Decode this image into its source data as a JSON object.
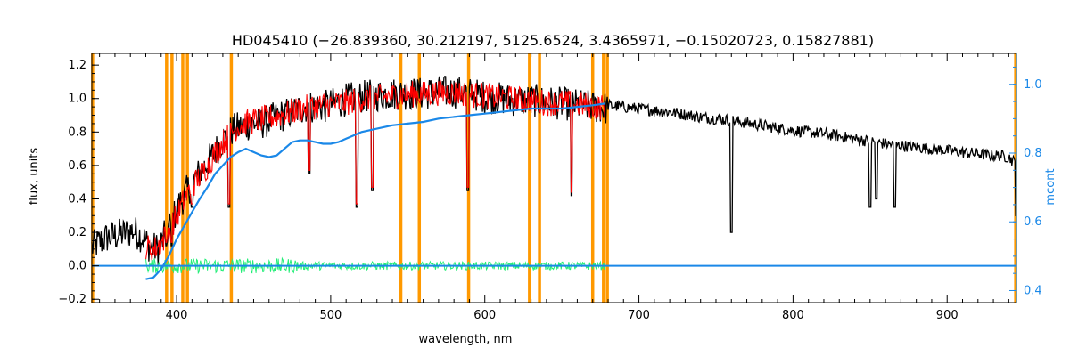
{
  "chart_data": {
    "type": "line",
    "title": "HD045410   (−26.839360, 30.212197, 5125.6524, 3.4365971, −0.15020723, 0.15827881)",
    "xlabel": "wavelength, nm",
    "ylabel": "flux, units",
    "y2label": "mcont",
    "xlim": [
      345,
      945
    ],
    "ylim": [
      -0.22,
      1.27
    ],
    "y2lim": [
      0.365,
      1.09
    ],
    "xticks": [
      400,
      500,
      600,
      700,
      800,
      900
    ],
    "yticks": [
      -0.2,
      0.0,
      0.2,
      0.4,
      0.6,
      0.8,
      1.0,
      1.2
    ],
    "ytick_labels": [
      "−0.2",
      "0.0",
      "0.2",
      "0.4",
      "0.6",
      "0.8",
      "1.0",
      "1.2"
    ],
    "y2ticks": [
      0.4,
      0.6,
      0.8,
      1.0
    ],
    "y2tick_labels": [
      "0.4",
      "0.6",
      "0.8",
      "1.0"
    ],
    "grid": false,
    "colors": {
      "observed": "#000000",
      "model": "#ff0000",
      "residual": "#22ee77",
      "continuum": "#1a88e8",
      "masks": "#ff9900",
      "axes": "#000000",
      "right_axis": "#1a88e8"
    },
    "mask_lines": [
      345.5,
      393.5,
      397,
      404,
      407,
      435.5,
      545.5,
      557.5,
      589.5,
      629,
      635.5,
      670,
      677,
      679.5,
      944.5
    ],
    "series": [
      {
        "key": "observed",
        "x": [
          345,
          355,
          365,
          372,
          378,
          383,
          388,
          393,
          397,
          402,
          407,
          412,
          418,
          424,
          430,
          436,
          442,
          448,
          454,
          460,
          466,
          472,
          478,
          484,
          490,
          496,
          502,
          508,
          514,
          520,
          530,
          540,
          550,
          560,
          570,
          580,
          590,
          600,
          610,
          620,
          630,
          640,
          650,
          660,
          670,
          680,
          690,
          700,
          720,
          740,
          760,
          780,
          800,
          820,
          840,
          860,
          880,
          900,
          910,
          920,
          930,
          935,
          940,
          945
        ],
        "y": [
          0.14,
          0.2,
          0.22,
          0.24,
          0.2,
          0.14,
          0.13,
          0.22,
          0.3,
          0.4,
          0.48,
          0.55,
          0.62,
          0.7,
          0.78,
          0.84,
          0.86,
          0.88,
          0.88,
          0.9,
          0.92,
          0.94,
          0.96,
          0.98,
          0.98,
          0.98,
          1.0,
          1.02,
          1.03,
          1.04,
          1.05,
          1.06,
          1.06,
          1.06,
          1.07,
          1.07,
          1.06,
          1.04,
          1.03,
          1.02,
          1.02,
          1.01,
          1.0,
          0.99,
          0.98,
          0.97,
          0.96,
          0.95,
          0.93,
          0.9,
          0.88,
          0.85,
          0.82,
          0.8,
          0.77,
          0.74,
          0.72,
          0.7,
          0.69,
          0.68,
          0.67,
          0.67,
          0.66,
          0.62
        ]
      },
      {
        "key": "model",
        "x": [
          380,
          385,
          390,
          395,
          400,
          405,
          410,
          415,
          420,
          425,
          430,
          435,
          440,
          445,
          450,
          460,
          470,
          480,
          490,
          500,
          510,
          520,
          530,
          540,
          550,
          560,
          570,
          580,
          590,
          600,
          610,
          620,
          630,
          640,
          650,
          660,
          670,
          678
        ],
        "y": [
          0.14,
          0.12,
          0.16,
          0.24,
          0.32,
          0.42,
          0.5,
          0.56,
          0.62,
          0.7,
          0.76,
          0.82,
          0.86,
          0.88,
          0.89,
          0.91,
          0.93,
          0.96,
          0.98,
          0.99,
          1.0,
          1.02,
          1.03,
          1.04,
          1.05,
          1.05,
          1.06,
          1.06,
          1.05,
          1.04,
          1.03,
          1.02,
          1.01,
          1.0,
          1.0,
          0.99,
          0.98,
          0.97
        ]
      },
      {
        "key": "continuum",
        "x": [
          380,
          385,
          390,
          395,
          400,
          405,
          410,
          415,
          420,
          425,
          430,
          435,
          440,
          445,
          450,
          455,
          460,
          465,
          470,
          475,
          480,
          485,
          490,
          495,
          500,
          505,
          510,
          515,
          520,
          530,
          540,
          550,
          560,
          570,
          580,
          590,
          600,
          610,
          620,
          630,
          640,
          650,
          660,
          670,
          678,
          690,
          700,
          800,
          900,
          945
        ],
        "y": [
          -0.08,
          -0.07,
          -0.02,
          0.06,
          0.16,
          0.24,
          0.32,
          0.4,
          0.47,
          0.55,
          0.6,
          0.65,
          0.68,
          0.7,
          0.68,
          0.66,
          0.65,
          0.66,
          0.7,
          0.74,
          0.75,
          0.75,
          0.74,
          0.73,
          0.73,
          0.74,
          0.76,
          0.78,
          0.8,
          0.82,
          0.84,
          0.85,
          0.86,
          0.88,
          0.89,
          0.9,
          0.91,
          0.92,
          0.93,
          0.94,
          0.94,
          0.94,
          0.95,
          0.96,
          0.97,
          0.0,
          0.0,
          0.0,
          0.0,
          0.0
        ]
      },
      {
        "key": "residual",
        "x": [
          380,
          678
        ],
        "y": [
          0.0,
          0.0
        ]
      }
    ]
  }
}
